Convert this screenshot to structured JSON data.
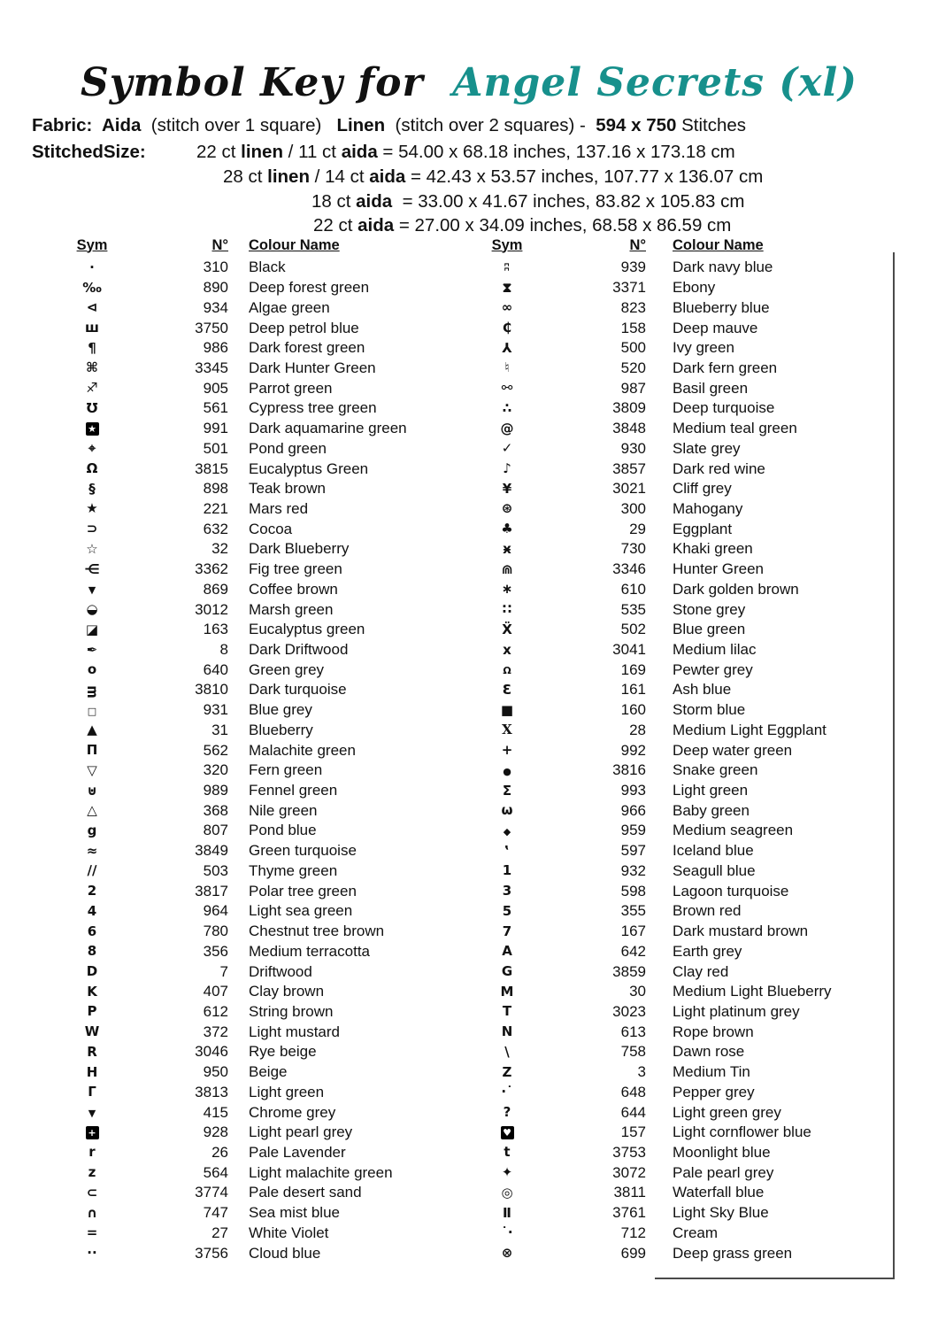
{
  "title": {
    "prefix": "Symbol Key for ",
    "name": " Angel Secrets (xl)",
    "accent_color": "#17908c"
  },
  "fabric_line": [
    {
      "t": "Fabric:  Aida",
      "b": 1
    },
    {
      "t": "  (stitch over 1 square)   "
    },
    {
      "t": "Linen",
      "b": 1
    },
    {
      "t": "  (stitch over 2 squares) -  "
    },
    {
      "t": "594 x 750",
      "b": 1
    },
    {
      "t": " Stitches"
    }
  ],
  "size_label": "StitchedSize:",
  "size_lines": [
    [
      {
        "t": "22 ct "
      },
      {
        "t": "linen",
        "b": 1
      },
      {
        "t": " / 11 ct "
      },
      {
        "t": "aida",
        "b": 1
      },
      {
        "t": " = 54.00 x 68.18 inches, 137.16 x 173.18 cm"
      }
    ],
    [
      {
        "t": "28 ct "
      },
      {
        "t": "linen",
        "b": 1
      },
      {
        "t": " / 14 ct "
      },
      {
        "t": "aida",
        "b": 1
      },
      {
        "t": " = 42.43 x 53.57 inches, 107.77 x 136.07 cm"
      }
    ],
    [
      {
        "t": "18 ct "
      },
      {
        "t": "aida",
        "b": 1
      },
      {
        "t": "  = 33.00 x 41.67 inches, 83.82 x 105.83 cm"
      }
    ],
    [
      {
        "t": "22 ct "
      },
      {
        "t": "aida",
        "b": 1
      },
      {
        "t": " = 27.00 x 34.09 inches, 68.58 x 86.59 cm"
      }
    ]
  ],
  "table": {
    "headers": {
      "sym": "Sym",
      "num": "N°",
      "name": "Colour Name"
    },
    "left": [
      {
        "sym": "·",
        "num": "310",
        "name": "Black"
      },
      {
        "sym": "‰",
        "num": "890",
        "name": "Deep forest green"
      },
      {
        "sym": "⊲",
        "num": "934",
        "name": "Algae green"
      },
      {
        "sym": "ш",
        "num": "3750",
        "name": "Deep petrol blue"
      },
      {
        "sym": "¶",
        "num": "986",
        "name": "Dark forest green"
      },
      {
        "sym": "⌘",
        "num": "3345",
        "name": "Dark Hunter Green"
      },
      {
        "sym": "♐",
        "num": "905",
        "name": "Parrot green"
      },
      {
        "sym": "℧",
        "num": "561",
        "name": "Cypress tree green"
      },
      {
        "sym": "★",
        "v": "box",
        "num": "991",
        "name": "Dark aquamarine green"
      },
      {
        "sym": "⌖",
        "num": "501",
        "name": "Pond green"
      },
      {
        "sym": "Ω",
        "num": "3815",
        "name": "Eucalyptus Green"
      },
      {
        "sym": "§",
        "num": "898",
        "name": "Teak brown"
      },
      {
        "sym": "★",
        "num": "221",
        "name": "Mars red"
      },
      {
        "sym": "⊃",
        "num": "632",
        "name": "Cocoa"
      },
      {
        "sym": "☆",
        "num": "32",
        "name": "Dark Blueberry"
      },
      {
        "sym": "⋲",
        "num": "3362",
        "name": "Fig tree green"
      },
      {
        "sym": "▼",
        "v": "sm",
        "num": "869",
        "name": "Coffee brown"
      },
      {
        "sym": "◒",
        "num": "3012",
        "name": "Marsh green"
      },
      {
        "sym": "◪",
        "num": "163",
        "name": "Eucalyptus green"
      },
      {
        "sym": "✒",
        "num": "8",
        "name": "Dark Driftwood"
      },
      {
        "sym": "o",
        "num": "640",
        "name": "Green grey"
      },
      {
        "sym": "ᴟ",
        "num": "3810",
        "name": "Dark turquoise"
      },
      {
        "sym": "□",
        "v": "sm",
        "num": "931",
        "name": "Blue grey"
      },
      {
        "sym": "▲",
        "num": "31",
        "name": "Blueberry"
      },
      {
        "sym": "Π",
        "num": "562",
        "name": "Malachite green"
      },
      {
        "sym": "▽",
        "num": "320",
        "name": "Fern green"
      },
      {
        "sym": "⊍",
        "num": "989",
        "name": "Fennel green"
      },
      {
        "sym": "△",
        "num": "368",
        "name": "Nile green"
      },
      {
        "sym": "g",
        "num": "807",
        "name": "Pond blue"
      },
      {
        "sym": "≈",
        "num": "3849",
        "name": "Green turquoise"
      },
      {
        "sym": "∕∕",
        "num": "503",
        "name": "Thyme green"
      },
      {
        "sym": "2",
        "num": "3817",
        "name": "Polar tree green"
      },
      {
        "sym": "4",
        "num": "964",
        "name": "Light sea green"
      },
      {
        "sym": "6",
        "num": "780",
        "name": "Chestnut tree brown"
      },
      {
        "sym": "8",
        "num": "356",
        "name": "Medium terracotta"
      },
      {
        "sym": "D",
        "num": "7",
        "name": "Driftwood"
      },
      {
        "sym": "K",
        "num": "407",
        "name": "Clay brown"
      },
      {
        "sym": "P",
        "num": "612",
        "name": "String brown"
      },
      {
        "sym": "W",
        "num": "372",
        "name": "Light mustard"
      },
      {
        "sym": "R",
        "num": "3046",
        "name": "Rye beige"
      },
      {
        "sym": "H",
        "num": "950",
        "name": "Beige"
      },
      {
        "sym": "Γ",
        "num": "3813",
        "name": "Light green"
      },
      {
        "sym": "▼",
        "v": "sm",
        "num": "415",
        "name": "Chrome grey"
      },
      {
        "sym": "+",
        "v": "box",
        "num": "928",
        "name": "Light pearl grey"
      },
      {
        "sym": "r",
        "num": "26",
        "name": "Pale Lavender"
      },
      {
        "sym": "z",
        "num": "564",
        "name": "Light malachite green"
      },
      {
        "sym": "⊂",
        "num": "3774",
        "name": "Pale desert sand"
      },
      {
        "sym": "∩",
        "num": "747",
        "name": "Sea mist blue"
      },
      {
        "sym": "=",
        "num": "27",
        "name": "White Violet"
      },
      {
        "sym": "··",
        "num": "3756",
        "name": "Cloud blue"
      }
    ],
    "right": [
      {
        "sym": "ʭ",
        "num": "939",
        "name": "Dark navy blue"
      },
      {
        "sym": "⧗",
        "num": "3371",
        "name": "Ebony"
      },
      {
        "sym": "∞",
        "num": "823",
        "name": "Blueberry blue"
      },
      {
        "sym": "₵",
        "num": "158",
        "name": "Deep mauve"
      },
      {
        "sym": "⅄",
        "num": "500",
        "name": "Ivy green"
      },
      {
        "sym": "♮",
        "num": "520",
        "name": "Dark fern green"
      },
      {
        "sym": "⚯",
        "num": "987",
        "name": "Basil green"
      },
      {
        "sym": "∴",
        "num": "3809",
        "name": "Deep turquoise"
      },
      {
        "sym": "@",
        "num": "3848",
        "name": "Medium teal green"
      },
      {
        "sym": "✓",
        "num": "930",
        "name": "Slate grey"
      },
      {
        "sym": "♪",
        "num": "3857",
        "name": "Dark red wine"
      },
      {
        "sym": "¥",
        "num": "3021",
        "name": "Cliff grey"
      },
      {
        "sym": "⊛",
        "num": "300",
        "name": "Mahogany"
      },
      {
        "sym": "♣",
        "num": "29",
        "name": "Eggplant"
      },
      {
        "sym": "ӿ",
        "num": "730",
        "name": "Khaki green"
      },
      {
        "sym": "⋒",
        "num": "3346",
        "name": "Hunter Green"
      },
      {
        "sym": "∗",
        "num": "610",
        "name": "Dark golden brown"
      },
      {
        "sym": "∷",
        "num": "535",
        "name": "Stone grey"
      },
      {
        "sym": "Ẍ",
        "num": "502",
        "name": "Blue green"
      },
      {
        "sym": "x",
        "num": "3041",
        "name": "Medium lilac"
      },
      {
        "sym": "Ω",
        "v": "sm",
        "num": "169",
        "name": "Pewter grey"
      },
      {
        "sym": "Ɛ",
        "num": "161",
        "name": "Ash blue"
      },
      {
        "sym": "■",
        "num": "160",
        "name": "Storm blue"
      },
      {
        "sym": "X",
        "v": "serif",
        "num": "28",
        "name": "Medium Light Eggplant"
      },
      {
        "sym": "+",
        "num": "992",
        "name": "Deep water green"
      },
      {
        "sym": "●",
        "v": "sm",
        "num": "3816",
        "name": "Snake green"
      },
      {
        "sym": "Σ",
        "num": "993",
        "name": "Light green"
      },
      {
        "sym": "ω",
        "num": "966",
        "name": "Baby green"
      },
      {
        "sym": "◆",
        "v": "sm",
        "num": "959",
        "name": "Medium seagreen"
      },
      {
        "sym": "‛",
        "num": "597",
        "name": "Iceland blue"
      },
      {
        "sym": "1",
        "num": "932",
        "name": "Seagull blue"
      },
      {
        "sym": "3",
        "num": "598",
        "name": "Lagoon turquoise"
      },
      {
        "sym": "5",
        "num": "355",
        "name": "Brown red"
      },
      {
        "sym": "7",
        "num": "167",
        "name": "Dark mustard brown"
      },
      {
        "sym": "A",
        "num": "642",
        "name": "Earth grey"
      },
      {
        "sym": "G",
        "num": "3859",
        "name": "Clay red"
      },
      {
        "sym": "M",
        "num": "30",
        "name": "Medium Light Blueberry"
      },
      {
        "sym": "T",
        "num": "3023",
        "name": "Light platinum grey"
      },
      {
        "sym": "N",
        "num": "613",
        "name": "Rope brown"
      },
      {
        "sym": "\\",
        "num": "758",
        "name": "Dawn rose"
      },
      {
        "sym": "Z",
        "num": "3",
        "name": "Medium Tin"
      },
      {
        "sym": "·˙",
        "num": "648",
        "name": "Pepper grey"
      },
      {
        "sym": "?",
        "num": "644",
        "name": "Light green grey"
      },
      {
        "sym": "♥",
        "v": "box",
        "num": "157",
        "name": "Light cornflower blue"
      },
      {
        "sym": "t",
        "num": "3753",
        "name": "Moonlight blue"
      },
      {
        "sym": "✦",
        "num": "3072",
        "name": "Pale pearl grey"
      },
      {
        "sym": "◎",
        "num": "3811",
        "name": "Waterfall blue"
      },
      {
        "sym": "Ⅱ",
        "num": "3761",
        "name": "Light Sky Blue"
      },
      {
        "sym": "˙·",
        "num": "712",
        "name": "Cream"
      },
      {
        "sym": "⊗",
        "num": "699",
        "name": "Deep grass green"
      }
    ]
  }
}
